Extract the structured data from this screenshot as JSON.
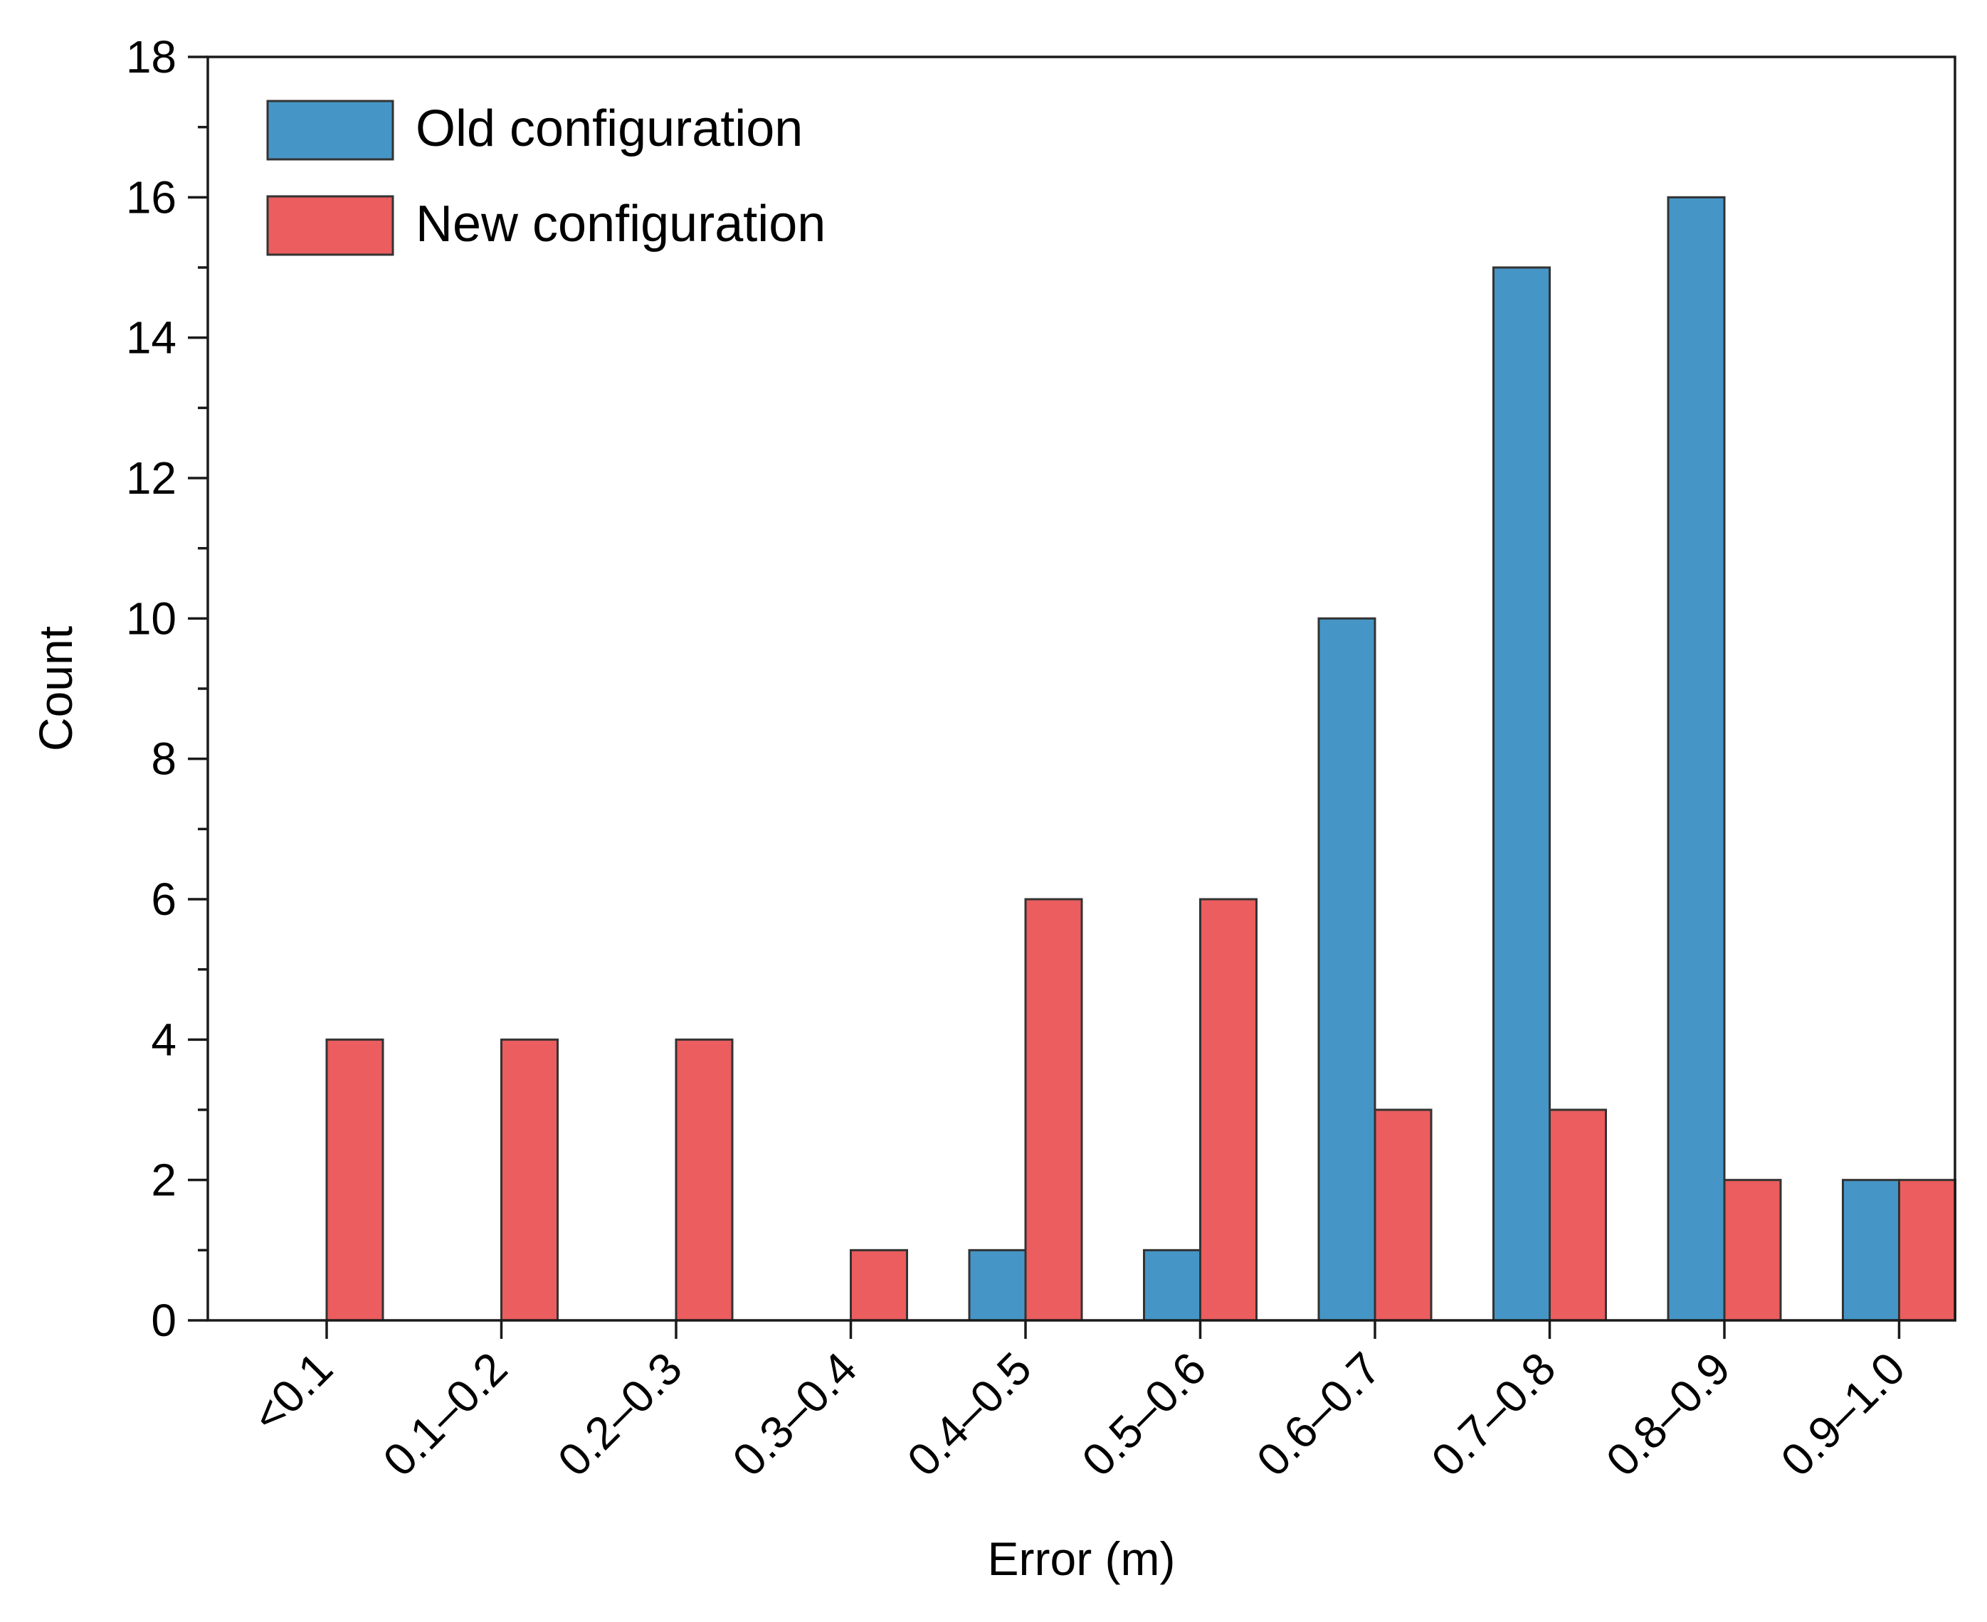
{
  "chart_data": {
    "type": "bar",
    "title": "",
    "xlabel": "Error (m)",
    "ylabel": "Count",
    "ylim": [
      0,
      18
    ],
    "y_major_ticks": [
      0,
      2,
      4,
      6,
      8,
      10,
      12,
      14,
      16,
      18
    ],
    "y_tick_labels": [
      "0",
      "2",
      "4",
      "6",
      "8",
      "10",
      "12",
      "14",
      "16",
      "18"
    ],
    "y_minor_step": 1,
    "grid": false,
    "legend_position": "top-left",
    "categories": [
      "<0.1",
      "0.1–0.2",
      "0.2–0.3",
      "0.3–0.4",
      "0.4–0.5",
      "0.5–0.6",
      "0.6–0.7",
      "0.7–0.8",
      "0.8–0.9",
      "0.9–1.0"
    ],
    "series": [
      {
        "name": "Old configuration",
        "color": "#4596c6",
        "values": [
          0,
          0,
          0,
          0,
          1,
          1,
          10,
          15,
          16,
          2
        ]
      },
      {
        "name": "New configuration",
        "color": "#eb5d5e",
        "values": [
          4,
          4,
          4,
          1,
          6,
          6,
          3,
          3,
          2,
          2
        ]
      }
    ]
  }
}
